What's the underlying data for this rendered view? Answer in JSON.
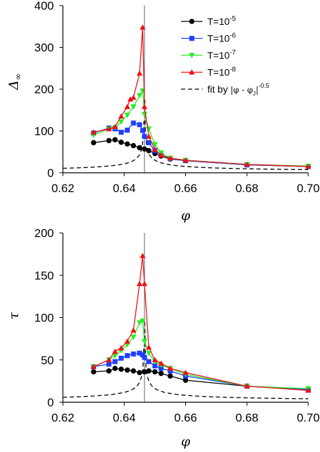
{
  "chart_data": [
    {
      "type": "line",
      "xlabel": "φ",
      "ylabel_main": "Δ",
      "ylabel_sub": "∞",
      "xlim": [
        0.62,
        0.7
      ],
      "ylim": [
        0,
        400
      ],
      "xticks": [
        "0.62",
        "0.64",
        "0.66",
        "0.68",
        "0.70"
      ],
      "yticks": [
        "0",
        "100",
        "200",
        "300",
        "400"
      ],
      "grid": false,
      "legend_position": "top-right",
      "vline_x": 0.6466,
      "series": [
        {
          "name_base": "T=10",
          "name_exp": "-5",
          "color": "#000000",
          "marker": "circle",
          "x": [
            0.63,
            0.635,
            0.637,
            0.639,
            0.641,
            0.643,
            0.645,
            0.6466,
            0.648,
            0.65,
            0.652,
            0.655,
            0.66,
            0.68,
            0.7
          ],
          "y": [
            72,
            77,
            79,
            73,
            69,
            65,
            60,
            57,
            53,
            46,
            40,
            33,
            29,
            19,
            15
          ]
        },
        {
          "name_base": "T=10",
          "name_exp": "-6",
          "color": "#1f3fff",
          "marker": "square",
          "x": [
            0.63,
            0.635,
            0.637,
            0.639,
            0.641,
            0.643,
            0.645,
            0.646,
            0.6466,
            0.648,
            0.65,
            0.652,
            0.655,
            0.66,
            0.68,
            0.7
          ],
          "y": [
            95,
            107,
            105,
            97,
            102,
            119,
            115,
            101,
            87,
            72,
            53,
            42,
            34,
            29,
            19,
            15
          ]
        },
        {
          "name_base": "T=10",
          "name_exp": "-7",
          "color": "#22ee22",
          "marker": "triangle-down",
          "x": [
            0.63,
            0.635,
            0.637,
            0.639,
            0.641,
            0.643,
            0.645,
            0.646,
            0.6466,
            0.648,
            0.65,
            0.652,
            0.655,
            0.66,
            0.68,
            0.7
          ],
          "y": [
            90,
            105,
            108,
            122,
            138,
            158,
            185,
            196,
            140,
            105,
            68,
            48,
            35,
            30,
            20,
            16
          ]
        },
        {
          "name_base": "T=10",
          "name_exp": "-8",
          "color": "#ee1111",
          "marker": "triangle-up",
          "x": [
            0.63,
            0.635,
            0.637,
            0.639,
            0.641,
            0.642,
            0.643,
            0.645,
            0.646,
            0.6466,
            0.648,
            0.65,
            0.652,
            0.655,
            0.66,
            0.68,
            0.7
          ],
          "y": [
            97,
            105,
            110,
            135,
            158,
            176,
            180,
            238,
            348,
            158,
            87,
            56,
            42,
            35,
            30,
            20,
            15
          ]
        }
      ],
      "fit": {
        "label_prefix": "fit by",
        "label_formula": "|φ - φ",
        "label_sub": "J",
        "label_exp": "-0.5",
        "amplitude": 1.75,
        "phi_j": 0.6466,
        "style": "dashed"
      }
    },
    {
      "type": "line",
      "xlabel": "φ",
      "ylabel_main": "τ",
      "xlim": [
        0.62,
        0.7
      ],
      "ylim": [
        0,
        200
      ],
      "xticks": [
        "0.62",
        "0.64",
        "0.66",
        "0.68",
        "0.70"
      ],
      "yticks": [
        "0",
        "50",
        "100",
        "150",
        "200"
      ],
      "grid": false,
      "vline_x": 0.6466,
      "series": [
        {
          "color": "#000000",
          "marker": "circle",
          "x": [
            0.63,
            0.635,
            0.637,
            0.639,
            0.641,
            0.643,
            0.645,
            0.6466,
            0.648,
            0.65,
            0.652,
            0.655,
            0.66,
            0.68,
            0.7
          ],
          "y": [
            36,
            37,
            40,
            39,
            38,
            37,
            35,
            36,
            37,
            36,
            34,
            31,
            26,
            19,
            15
          ]
        },
        {
          "color": "#1f3fff",
          "marker": "square",
          "x": [
            0.63,
            0.635,
            0.637,
            0.639,
            0.641,
            0.643,
            0.645,
            0.646,
            0.6466,
            0.648,
            0.65,
            0.652,
            0.655,
            0.66,
            0.68,
            0.7
          ],
          "y": [
            42,
            45,
            48,
            52,
            55,
            57,
            58,
            56,
            53,
            48,
            43,
            40,
            37,
            31,
            19,
            15
          ]
        },
        {
          "color": "#22ee22",
          "marker": "triangle-down",
          "x": [
            0.63,
            0.635,
            0.637,
            0.639,
            0.641,
            0.643,
            0.645,
            0.646,
            0.6466,
            0.648,
            0.65,
            0.652,
            0.655,
            0.66,
            0.68,
            0.7
          ],
          "y": [
            42,
            50,
            55,
            61,
            68,
            77,
            94,
            96,
            72,
            58,
            48,
            44,
            40,
            33,
            19,
            16
          ]
        },
        {
          "color": "#ee1111",
          "marker": "triangle-up",
          "x": [
            0.63,
            0.635,
            0.637,
            0.639,
            0.641,
            0.643,
            0.645,
            0.646,
            0.6466,
            0.648,
            0.65,
            0.652,
            0.655,
            0.66,
            0.68,
            0.7
          ],
          "y": [
            42,
            50,
            60,
            64,
            72,
            85,
            140,
            173,
            140,
            65,
            50,
            46,
            40,
            35,
            19,
            14
          ]
        }
      ],
      "fit": {
        "amplitude": 0.95,
        "phi_j": 0.6466,
        "style": "dashed"
      }
    }
  ]
}
